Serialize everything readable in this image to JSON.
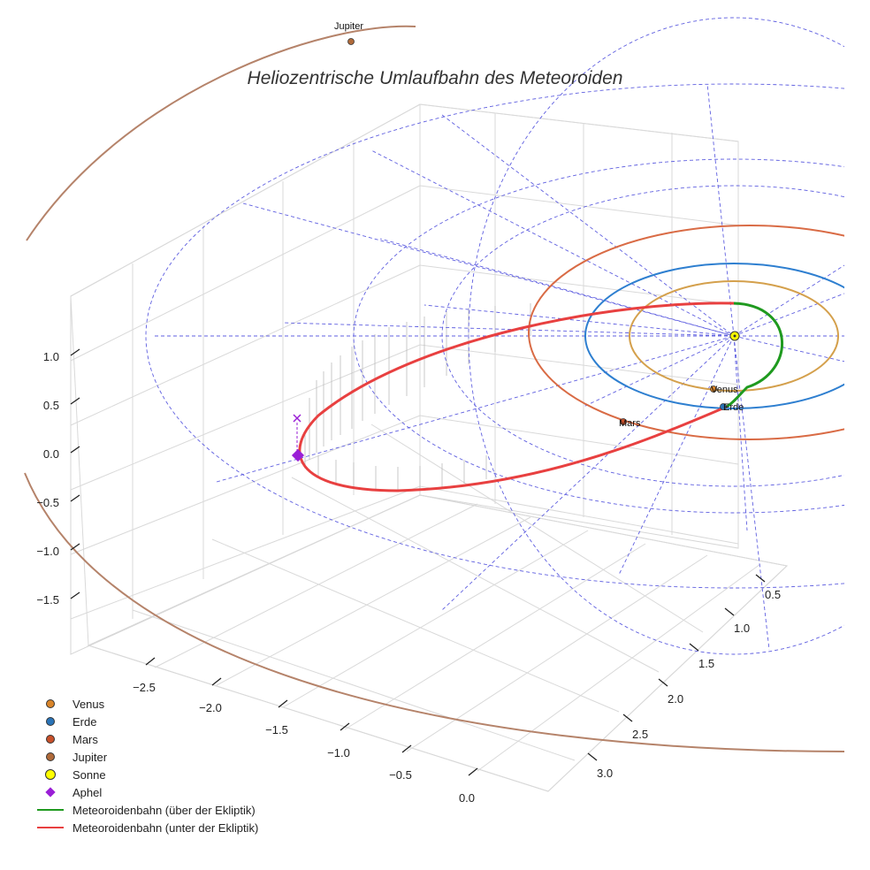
{
  "chart_data": {
    "type": "line3d",
    "title": "Heliozentrische Umlaufbahn des Meteoroiden",
    "x_ticks": [
      "−2.5",
      "−2.0",
      "−1.5",
      "−1.0",
      "−0.5",
      "0.0"
    ],
    "y_ticks": [
      "0.5",
      "1.0",
      "1.5",
      "2.0",
      "2.5",
      "3.0"
    ],
    "z_ticks": [
      "1.0",
      "0.5",
      "0.0",
      "−0.5",
      "−1.0",
      "−1.5"
    ],
    "planets": [
      {
        "name": "Venus",
        "color": "#d4a04c",
        "a_au": 0.72
      },
      {
        "name": "Erde",
        "color": "#2e7fd0",
        "a_au": 1.0
      },
      {
        "name": "Mars",
        "color": "#d96b45",
        "a_au": 1.52
      },
      {
        "name": "Jupiter",
        "color": "#b5836a",
        "a_au": 5.2
      }
    ],
    "sun": {
      "name": "Sonne",
      "color": "#ffff00"
    },
    "aphel": {
      "name": "Aphel",
      "color": "#9a1fd6"
    },
    "series": [
      {
        "name": "Meteoroidenbahn (über der Ekliptik)",
        "color": "#1f9a1f"
      },
      {
        "name": "Meteoroidenbahn (unter der Ekliptik)",
        "color": "#e84040"
      }
    ],
    "grid_color": "#5f5fe0"
  },
  "legend": {
    "items": [
      {
        "label": "Venus",
        "kind": "dot",
        "color": "#d9852a"
      },
      {
        "label": "Erde",
        "kind": "dot",
        "color": "#2a74b8"
      },
      {
        "label": "Mars",
        "kind": "dot",
        "color": "#c8502a"
      },
      {
        "label": "Jupiter",
        "kind": "dot",
        "color": "#b06a3a"
      },
      {
        "label": "Sonne",
        "kind": "dot-big",
        "color": "#ffff00"
      },
      {
        "label": "Aphel",
        "kind": "diamond",
        "color": "#9a1fd6"
      },
      {
        "label": "Meteoroidenbahn (über der Ekliptik)",
        "kind": "line",
        "color": "#1f9a1f"
      },
      {
        "label": "Meteoroidenbahn (unter der Ekliptik)",
        "kind": "line",
        "color": "#e84040"
      }
    ]
  }
}
